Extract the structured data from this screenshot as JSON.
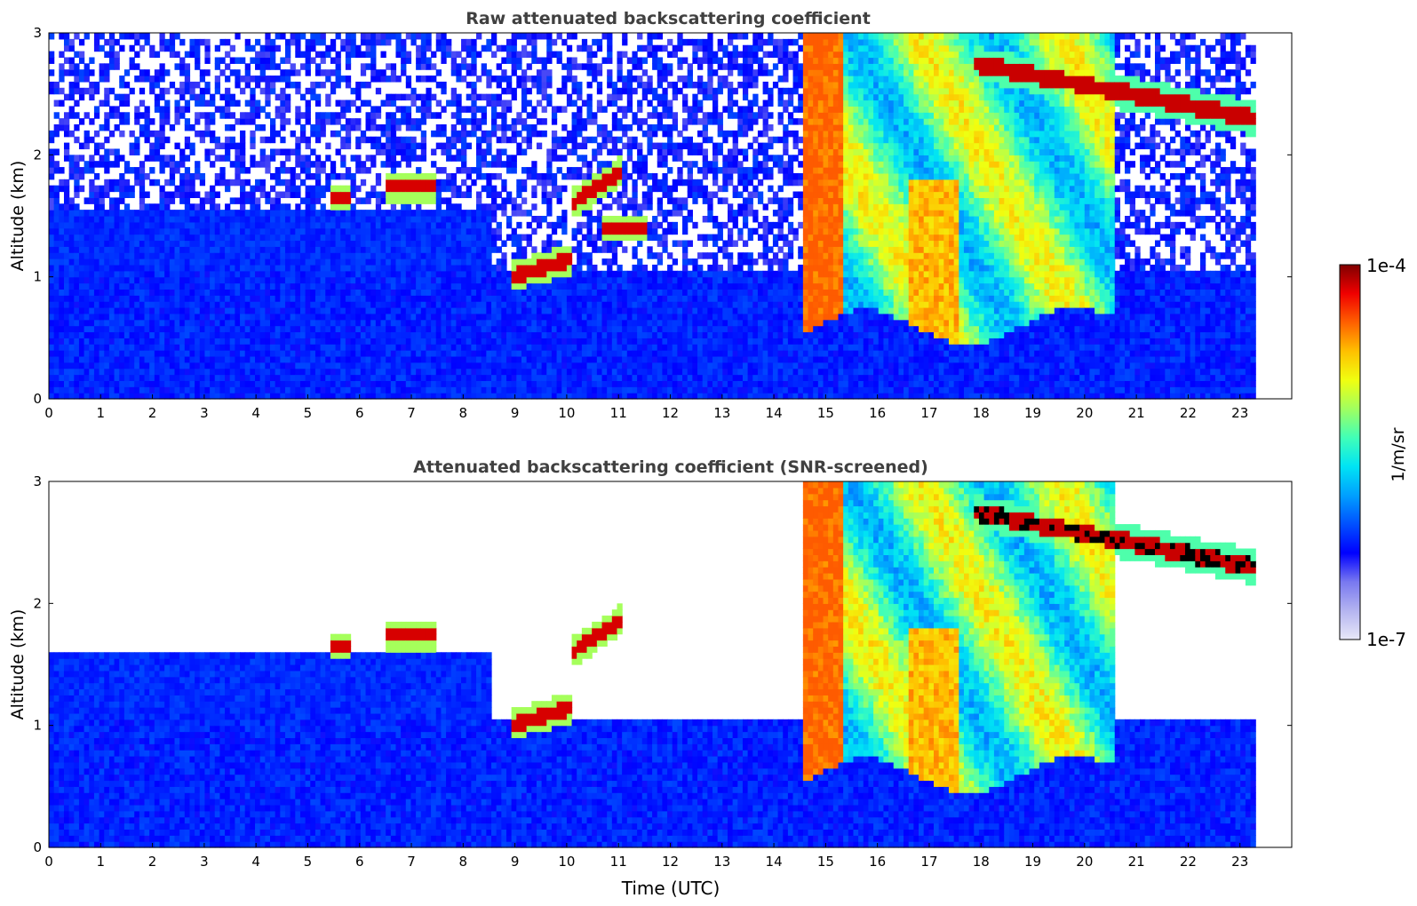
{
  "chart_data": [
    {
      "type": "heatmap",
      "title": "Raw attenuated backscattering coefficient",
      "xlabel": "",
      "ylabel": "Altitude (km)",
      "xlim": [
        0,
        24
      ],
      "ylim": [
        0,
        3
      ],
      "xticks": [
        "0",
        "1",
        "2",
        "3",
        "4",
        "5",
        "6",
        "7",
        "8",
        "9",
        "10",
        "11",
        "12",
        "13",
        "14",
        "15",
        "16",
        "17",
        "18",
        "19",
        "20",
        "21",
        "22",
        "23"
      ],
      "yticks": [
        "0",
        "1",
        "2",
        "3"
      ],
      "data_end_time": 23.3,
      "screened": false,
      "features": [
        {
          "kind": "surface_layer",
          "t_start": 0,
          "t_end": 23.3,
          "alt_top": 0.1
        },
        {
          "kind": "boundary_layer",
          "t_start": 0,
          "t_end": 23.3,
          "alt_top": 1.05
        },
        {
          "kind": "elevated_layer",
          "t_start": 0,
          "t_end": 8.5,
          "alt_bottom": 1.05,
          "alt_top": 1.55
        },
        {
          "kind": "thin_cloud",
          "t_start": 5.4,
          "t_end": 5.8,
          "alt": 1.65
        },
        {
          "kind": "thin_cloud",
          "t_start": 6.5,
          "t_end": 7.5,
          "alt": 1.74
        },
        {
          "kind": "thin_cloud",
          "t_start": 8.9,
          "t_end": 10.1,
          "alt_from": 1.0,
          "alt_to": 1.15
        },
        {
          "kind": "thin_cloud",
          "t_start": 10.1,
          "t_end": 11.1,
          "alt_from": 1.6,
          "alt_to": 1.88
        },
        {
          "kind": "thin_cloud",
          "t_start": 10.7,
          "t_end": 11.6,
          "alt": 1.4
        },
        {
          "kind": "precipitating_cloud",
          "t_start": 14.6,
          "t_end": 20.6,
          "alt_bottom": 0.55,
          "alt_top": 3.0
        },
        {
          "kind": "high_cloud",
          "t_start": 17.9,
          "t_end": 23.3,
          "alt_from": 2.75,
          "alt_to": 2.3
        }
      ]
    },
    {
      "type": "heatmap",
      "title": "Attenuated backscattering coefficient (SNR-screened)",
      "xlabel": "Time (UTC)",
      "ylabel": "Altitude (km)",
      "xlim": [
        0,
        24
      ],
      "ylim": [
        0,
        3
      ],
      "xticks": [
        "0",
        "1",
        "2",
        "3",
        "4",
        "5",
        "6",
        "7",
        "8",
        "9",
        "10",
        "11",
        "12",
        "13",
        "14",
        "15",
        "16",
        "17",
        "18",
        "19",
        "20",
        "21",
        "22",
        "23"
      ],
      "yticks": [
        "0",
        "1",
        "2",
        "3"
      ],
      "data_end_time": 23.3,
      "screened": true,
      "features": [
        {
          "kind": "surface_layer",
          "t_start": 0,
          "t_end": 23.3,
          "alt_top": 0.1
        },
        {
          "kind": "boundary_layer",
          "t_start": 0,
          "t_end": 23.3,
          "alt_top": 1.05
        },
        {
          "kind": "elevated_layer",
          "t_start": 0,
          "t_end": 8.5,
          "alt_bottom": 1.05,
          "alt_top": 1.6
        },
        {
          "kind": "thin_cloud",
          "t_start": 5.4,
          "t_end": 5.8,
          "alt": 1.65
        },
        {
          "kind": "thin_cloud",
          "t_start": 6.5,
          "t_end": 7.5,
          "alt": 1.74
        },
        {
          "kind": "thin_cloud",
          "t_start": 8.9,
          "t_end": 10.1,
          "alt_from": 1.0,
          "alt_to": 1.15
        },
        {
          "kind": "thin_cloud",
          "t_start": 10.1,
          "t_end": 11.1,
          "alt_from": 1.6,
          "alt_to": 1.88
        },
        {
          "kind": "precipitating_cloud",
          "t_start": 14.6,
          "t_end": 20.6,
          "alt_bottom": 0.55,
          "alt_top": 3.0
        },
        {
          "kind": "high_cloud",
          "t_start": 17.9,
          "t_end": 23.3,
          "alt_from": 2.75,
          "alt_to": 2.3
        }
      ]
    }
  ],
  "colorbar": {
    "max_label": "1e-4",
    "min_label": "1e-7",
    "unit_label": "1/m/sr",
    "colors": [
      "#e8e8f8",
      "#b4b4f0",
      "#7878f0",
      "#0000ff",
      "#0050ff",
      "#00a0ff",
      "#00e4f4",
      "#40ffb8",
      "#a0ff60",
      "#f0ff10",
      "#ffc000",
      "#ff6000",
      "#f00000",
      "#800000"
    ]
  }
}
